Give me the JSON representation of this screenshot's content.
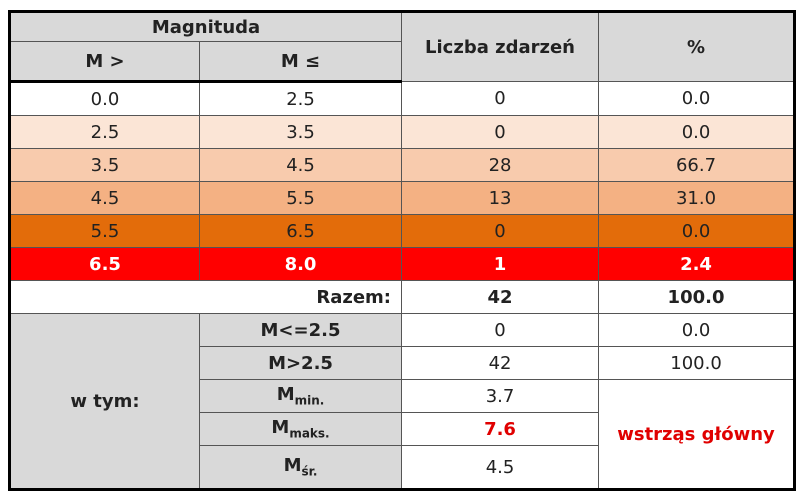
{
  "header": {
    "magnitude": "Magnituda",
    "m_gt": "M >",
    "m_le": "M ≤",
    "count": "Liczba zdarzeń",
    "percent": "%"
  },
  "rows": [
    [
      "0.0",
      "2.5",
      "0",
      "0.0"
    ],
    [
      "2.5",
      "3.5",
      "0",
      "0.0"
    ],
    [
      "3.5",
      "4.5",
      "28",
      "66.7"
    ],
    [
      "4.5",
      "5.5",
      "13",
      "31.0"
    ],
    [
      "5.5",
      "6.5",
      "0",
      "0.0"
    ],
    [
      "6.5",
      "8.0",
      "1",
      "2.4"
    ]
  ],
  "total": {
    "label": "Razem:",
    "count": "42",
    "percent": "100.0"
  },
  "subset": {
    "label": "w tym:",
    "rows": [
      {
        "label": "M<=2.5",
        "count": "0",
        "percent": "0.0"
      },
      {
        "label": "M>2.5",
        "count": "42",
        "percent": "100.0"
      },
      {
        "base": "M",
        "sub": "min.",
        "count": "3.7"
      },
      {
        "base": "M",
        "sub": "maks.",
        "count": "7.6"
      },
      {
        "base": "M",
        "sub": "śr.",
        "count": "4.5"
      }
    ],
    "note": "wstrząs główny"
  }
}
